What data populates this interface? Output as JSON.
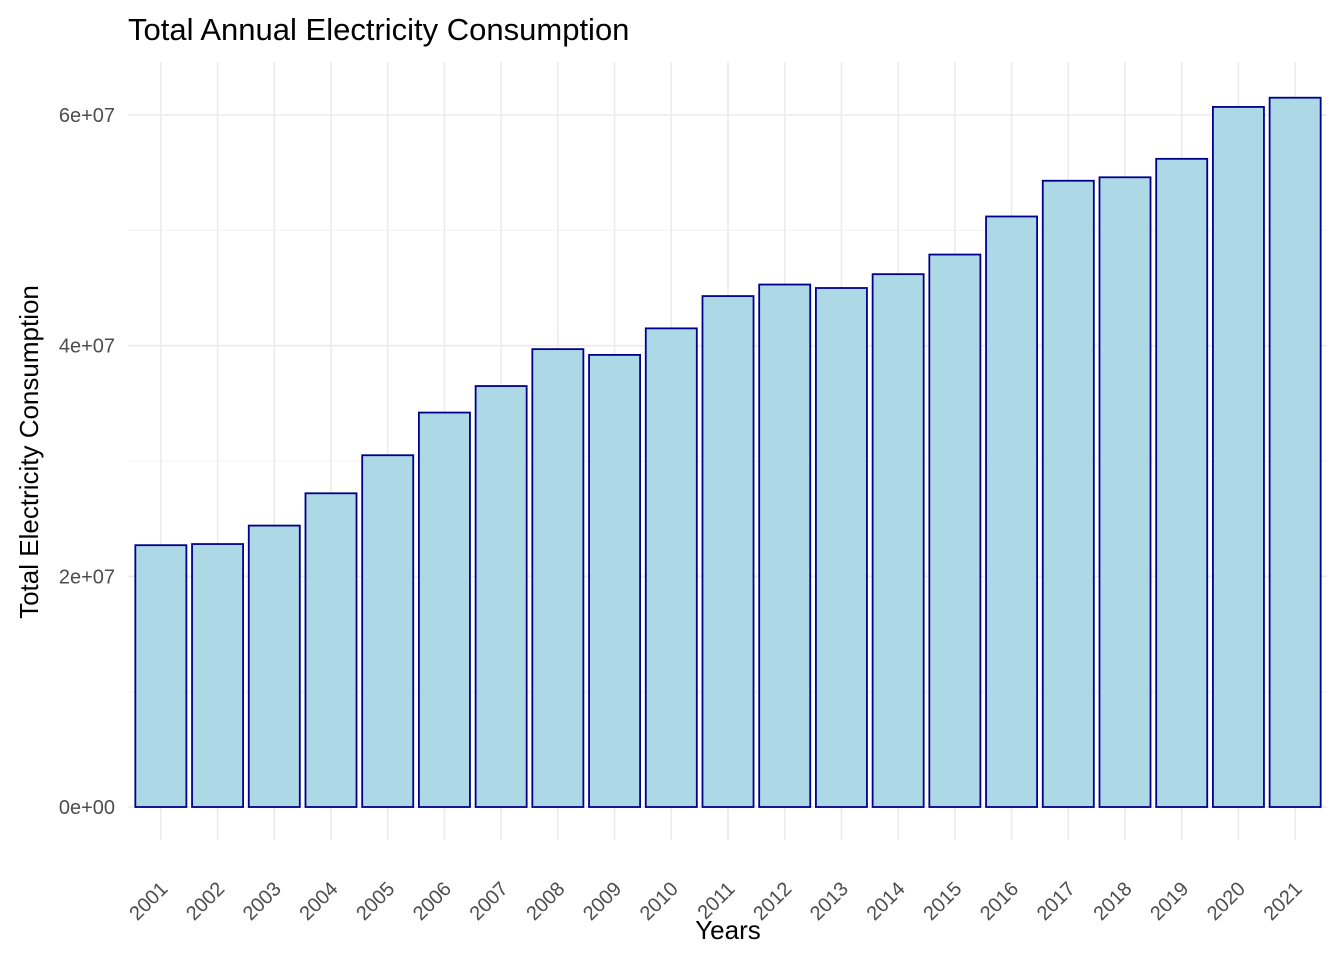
{
  "chart_data": {
    "type": "bar",
    "title": "Total Annual Electricity Consumption",
    "xlabel": "Years",
    "ylabel": "Total Electricity Consumption",
    "categories": [
      "2001",
      "2002",
      "2003",
      "2004",
      "2005",
      "2006",
      "2007",
      "2008",
      "2009",
      "2010",
      "2011",
      "2012",
      "2013",
      "2014",
      "2015",
      "2016",
      "2017",
      "2018",
      "2019",
      "2020",
      "2021"
    ],
    "values": [
      22700000,
      22800000,
      24400000,
      27200000,
      30500000,
      34200000,
      36500000,
      39700000,
      39200000,
      41500000,
      44300000,
      45300000,
      45000000,
      46200000,
      47900000,
      51200000,
      54300000,
      54600000,
      56200000,
      60700000,
      61500000
    ],
    "ylim": [
      0,
      64000000
    ],
    "y_ticks": [
      0,
      20000000,
      40000000,
      60000000
    ],
    "y_tick_labels": [
      "0e+00",
      "2e+07",
      "4e+07",
      "6e+07"
    ],
    "grid": true,
    "colors": {
      "bar_fill": "#add8e6",
      "bar_stroke": "#00008b"
    }
  }
}
